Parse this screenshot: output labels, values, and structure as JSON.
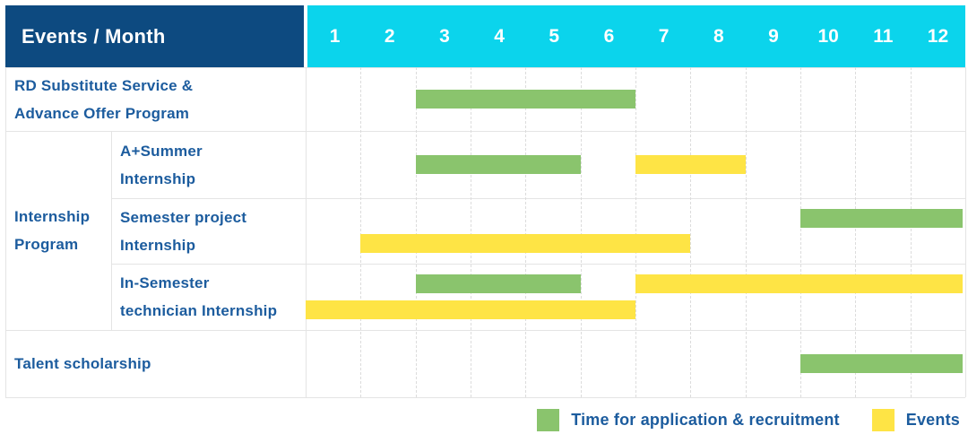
{
  "header": {
    "title": "Events / Month",
    "months": [
      "1",
      "2",
      "3",
      "4",
      "5",
      "6",
      "7",
      "8",
      "9",
      "10",
      "11",
      "12"
    ]
  },
  "group": {
    "label_lines": [
      "Internship",
      "Program"
    ]
  },
  "rows": [
    {
      "id": "rd-substitute-service",
      "label_lines": [
        "RD Substitute Service &",
        "Advance Offer Program"
      ],
      "grouped": false,
      "lines": 1,
      "bars": [
        {
          "color": "recruitment",
          "start": 3,
          "end": 6,
          "line": 0
        }
      ]
    },
    {
      "id": "a-plus-summer-internship",
      "label_lines": [
        "A+Summer",
        "Internship"
      ],
      "grouped": true,
      "lines": 1,
      "bars": [
        {
          "color": "recruitment",
          "start": 3,
          "end": 5,
          "line": 0
        },
        {
          "color": "events",
          "start": 7,
          "end": 8,
          "line": 0
        }
      ]
    },
    {
      "id": "semester-project-internship",
      "label_lines": [
        "Semester project",
        "Internship"
      ],
      "grouped": true,
      "lines": 2,
      "bars": [
        {
          "color": "recruitment",
          "start": 10,
          "end": 12,
          "line": 0
        },
        {
          "color": "events",
          "start": 2,
          "end": 7,
          "line": 1
        }
      ]
    },
    {
      "id": "in-semester-technician-internship",
      "label_lines": [
        "In-Semester",
        "technician Internship"
      ],
      "grouped": true,
      "lines": 2,
      "bars": [
        {
          "color": "recruitment",
          "start": 3,
          "end": 5,
          "line": 0
        },
        {
          "color": "events",
          "start": 7,
          "end": 12,
          "line": 0
        },
        {
          "color": "events",
          "start": 1,
          "end": 6,
          "line": 1
        }
      ]
    },
    {
      "id": "talent-scholarship",
      "label_lines": [
        "Talent scholarship"
      ],
      "grouped": false,
      "lines": 1,
      "bars": [
        {
          "color": "recruitment",
          "start": 10,
          "end": 12,
          "line": 0
        }
      ]
    }
  ],
  "legend": {
    "items": [
      {
        "label": "Time for application & recruitment",
        "color": "recruitment"
      },
      {
        "label": "Events",
        "color": "events"
      }
    ]
  },
  "colors": {
    "recruitment": "#8ac46d",
    "events": "#fee445",
    "header_bg": "#0d4a80",
    "months_bg": "#0bd4ec",
    "label_text": "#1c5c9e"
  },
  "chart_data": {
    "type": "table",
    "title": "Events / Month",
    "xlabel": "Month",
    "x_ticks": [
      1,
      2,
      3,
      4,
      5,
      6,
      7,
      8,
      9,
      10,
      11,
      12
    ],
    "legend_entries": [
      "Time for application & recruitment",
      "Events"
    ],
    "legend_position": "bottom-right",
    "grid": true,
    "rows": [
      {
        "event": "RD Substitute Service & Advance Offer Program",
        "group": null,
        "application_recruitment_month_ranges": [
          [
            3,
            6
          ]
        ],
        "events_month_ranges": []
      },
      {
        "event": "A+Summer Internship",
        "group": "Internship Program",
        "application_recruitment_month_ranges": [
          [
            3,
            5
          ]
        ],
        "events_month_ranges": [
          [
            7,
            8
          ]
        ]
      },
      {
        "event": "Semester project Internship",
        "group": "Internship Program",
        "application_recruitment_month_ranges": [
          [
            10,
            12
          ]
        ],
        "events_month_ranges": [
          [
            2,
            7
          ]
        ]
      },
      {
        "event": "In-Semester technician Internship",
        "group": "Internship Program",
        "application_recruitment_month_ranges": [
          [
            3,
            5
          ]
        ],
        "events_month_ranges": [
          [
            7,
            12
          ],
          [
            1,
            6
          ]
        ]
      },
      {
        "event": "Talent scholarship",
        "group": null,
        "application_recruitment_month_ranges": [
          [
            10,
            12
          ]
        ],
        "events_month_ranges": []
      }
    ]
  }
}
